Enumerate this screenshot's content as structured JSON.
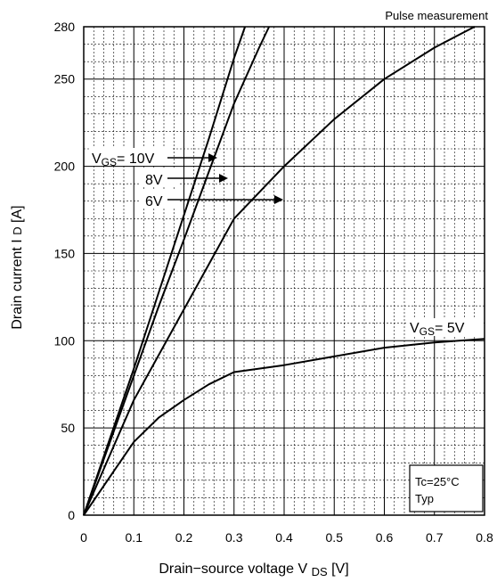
{
  "chart_data": {
    "type": "line",
    "title": "",
    "xlabel": "Drain−source voltage",
    "xlabel_symbol": "V",
    "xlabel_subscript": "DS",
    "xlabel_unit": "[V]",
    "ylabel": "Drain current",
    "ylabel_symbol": "I",
    "ylabel_subscript": "D",
    "ylabel_unit": "[A]",
    "xlim": [
      0,
      0.8
    ],
    "ylim": [
      0,
      280
    ],
    "xticks": [
      0,
      0.1,
      0.2,
      0.3,
      0.4,
      0.5,
      0.6,
      0.7,
      0.8
    ],
    "xtick_labels": [
      "0",
      "0.1",
      "0.2",
      "0.3",
      "0.4",
      "0.5",
      "0.6",
      "0.7",
      "0.8"
    ],
    "yticks": [
      0,
      50,
      100,
      150,
      200,
      250,
      280
    ],
    "ytick_labels": [
      "0",
      "50",
      "100",
      "150",
      "200",
      "250",
      "280"
    ],
    "grid": true,
    "series": [
      {
        "name": "10V",
        "points": [
          [
            0,
            0
          ],
          [
            0.05,
            42
          ],
          [
            0.1,
            84
          ],
          [
            0.15,
            128
          ],
          [
            0.2,
            172
          ],
          [
            0.25,
            216
          ],
          [
            0.3,
            262
          ],
          [
            0.322,
            280
          ]
        ]
      },
      {
        "name": "8V",
        "points": [
          [
            0,
            0
          ],
          [
            0.05,
            40
          ],
          [
            0.1,
            80
          ],
          [
            0.15,
            120
          ],
          [
            0.2,
            158
          ],
          [
            0.25,
            197
          ],
          [
            0.3,
            236
          ],
          [
            0.35,
            268
          ],
          [
            0.37,
            280
          ]
        ]
      },
      {
        "name": "6V",
        "points": [
          [
            0,
            0
          ],
          [
            0.05,
            33
          ],
          [
            0.1,
            66
          ],
          [
            0.2,
            118
          ],
          [
            0.3,
            170
          ],
          [
            0.4,
            200
          ],
          [
            0.5,
            227
          ],
          [
            0.6,
            250
          ],
          [
            0.7,
            268
          ],
          [
            0.78,
            280
          ]
        ]
      },
      {
        "name": "5V",
        "points": [
          [
            0,
            0
          ],
          [
            0.05,
            21
          ],
          [
            0.1,
            42
          ],
          [
            0.15,
            56
          ],
          [
            0.2,
            66
          ],
          [
            0.25,
            75
          ],
          [
            0.3,
            82
          ],
          [
            0.4,
            86
          ],
          [
            0.5,
            91
          ],
          [
            0.6,
            96
          ],
          [
            0.7,
            99
          ],
          [
            0.8,
            101
          ]
        ]
      }
    ],
    "annotations": {
      "pulse": "Pulse measurement",
      "vgs_prefix": "V",
      "vgs_sub": "GS",
      "vgs_eq": "= ",
      "label_10v": "10V",
      "label_8v": "8V",
      "label_6v": "6V",
      "label_5v": "5V",
      "tc": "Tc=25°C",
      "typ": "Typ"
    }
  }
}
